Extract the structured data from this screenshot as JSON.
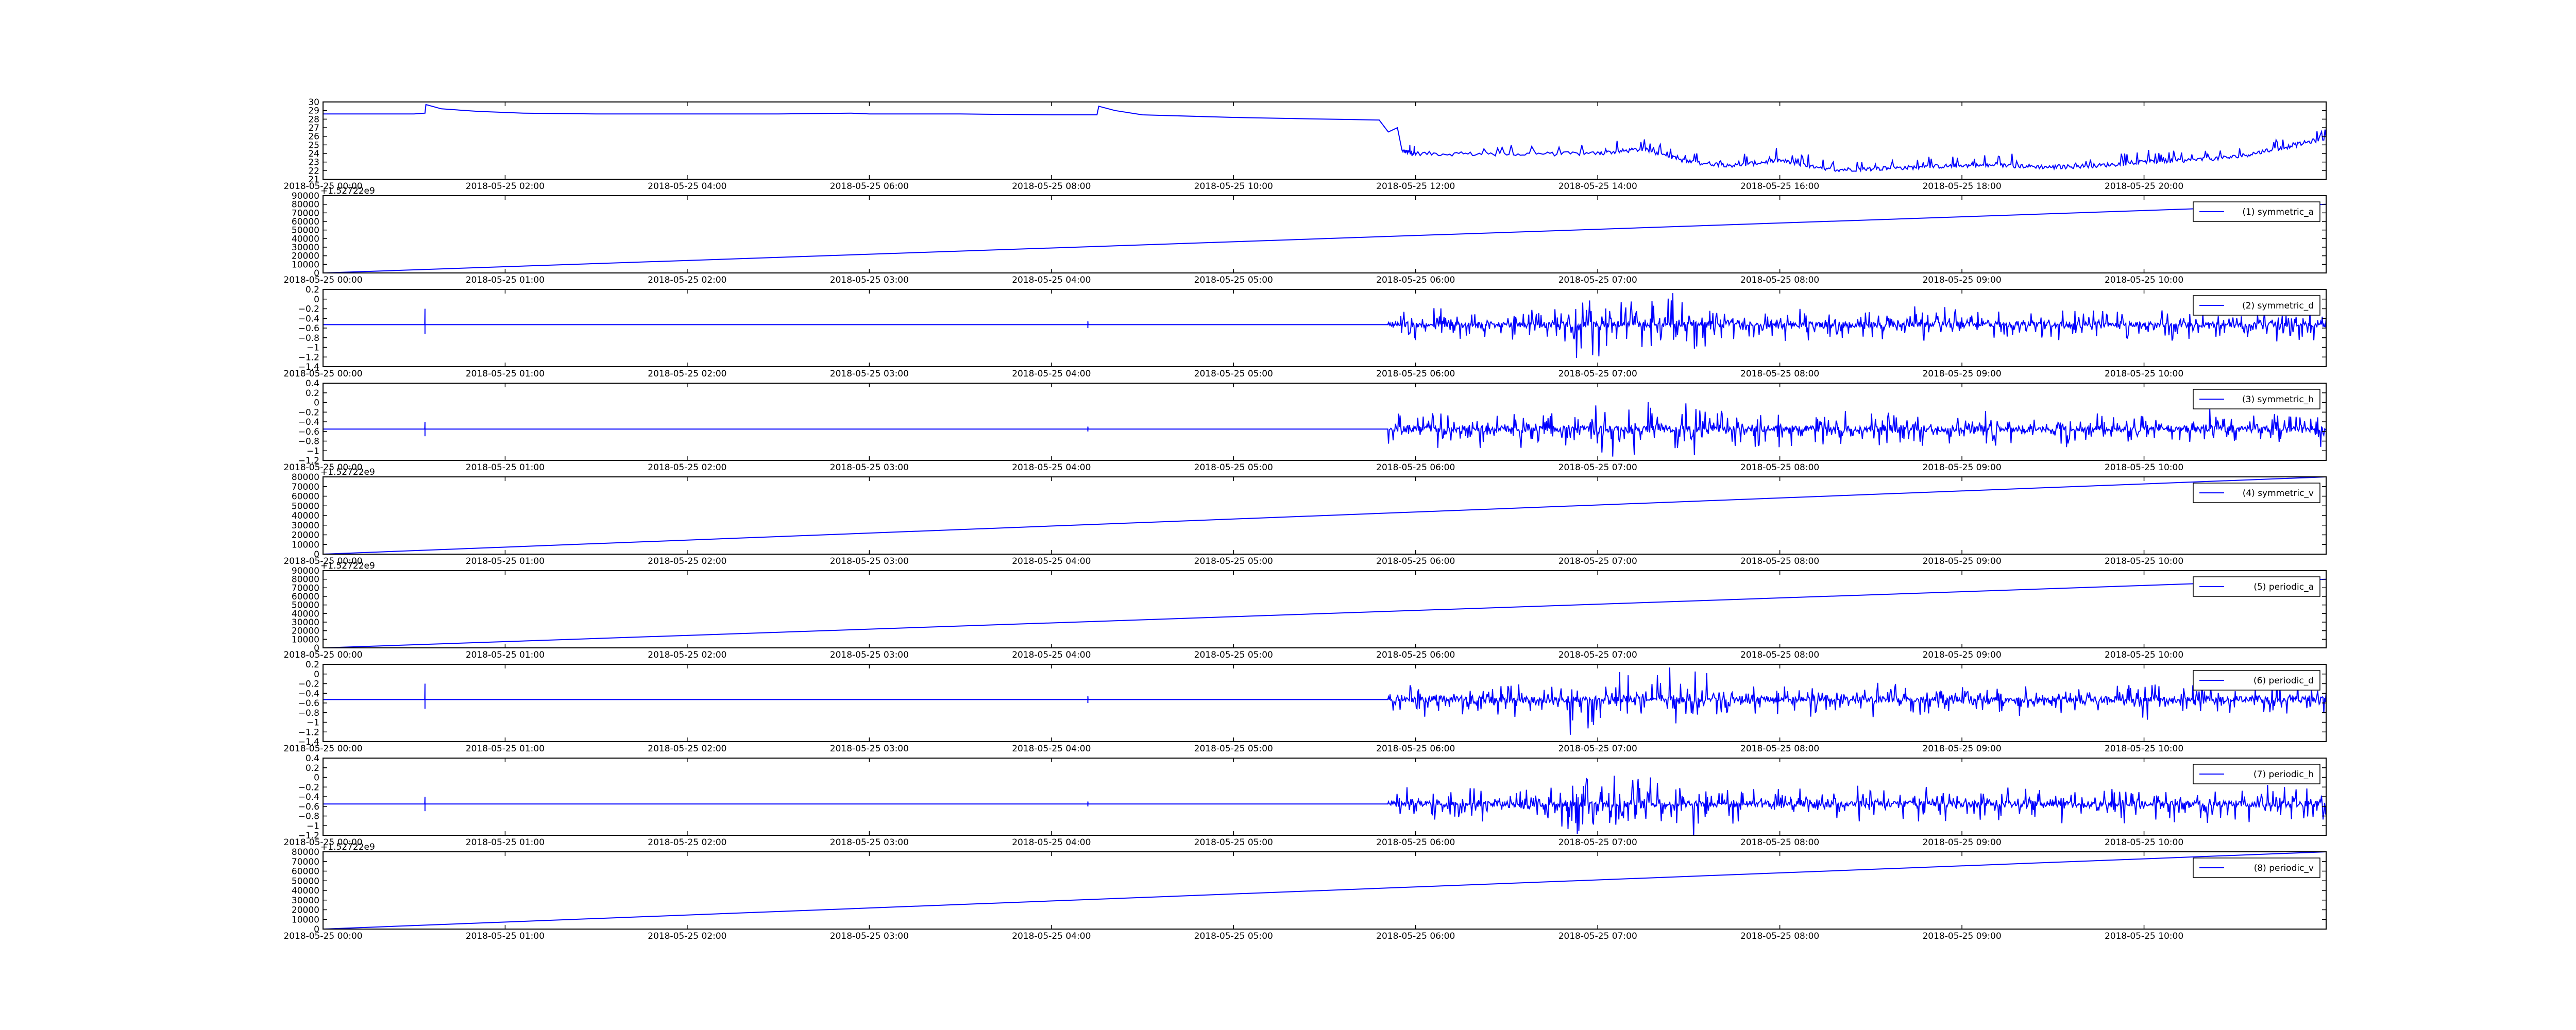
{
  "page": {
    "background": "#ffffff"
  },
  "style": {
    "line_color": "#0000ff",
    "frame_color": "#000000"
  },
  "chart_data": [
    {
      "id": "temp",
      "type": "line",
      "grid": false,
      "legend": null,
      "ylim": [
        21,
        30
      ],
      "yticks": [
        21,
        22,
        23,
        24,
        25,
        26,
        27,
        28,
        29,
        30
      ],
      "xlim": [
        0,
        22
      ],
      "xticks": [
        {
          "v": 0,
          "label": "2018-05-25 00:00"
        },
        {
          "v": 2,
          "label": "2018-05-25 02:00"
        },
        {
          "v": 4,
          "label": "2018-05-25 04:00"
        },
        {
          "v": 6,
          "label": "2018-05-25 06:00"
        },
        {
          "v": 8,
          "label": "2018-05-25 08:00"
        },
        {
          "v": 10,
          "label": "2018-05-25 10:00"
        },
        {
          "v": 12,
          "label": "2018-05-25 12:00"
        },
        {
          "v": 14,
          "label": "2018-05-25 14:00"
        },
        {
          "v": 16,
          "label": "2018-05-25 16:00"
        },
        {
          "v": 18,
          "label": "2018-05-25 18:00"
        },
        {
          "v": 20,
          "label": "2018-05-25 20:00"
        }
      ],
      "series": [
        {
          "x": [
            0,
            1.0,
            1.12,
            1.13,
            1.3,
            1.7,
            2.2,
            3,
            4,
            5,
            5.8,
            6,
            7,
            8,
            8.5,
            8.52,
            8.7,
            9,
            10,
            11,
            11.6,
            11.7,
            11.8,
            11.85,
            12,
            13,
            14,
            14.5,
            15,
            15.5,
            16,
            16.5,
            17,
            17.5,
            18,
            18.5,
            19,
            19.5,
            20,
            20.5,
            21,
            21.5,
            22
          ],
          "y": [
            28.6,
            28.6,
            28.7,
            29.7,
            29.2,
            28.9,
            28.7,
            28.6,
            28.6,
            28.6,
            28.7,
            28.6,
            28.6,
            28.5,
            28.5,
            29.5,
            29.0,
            28.5,
            28.2,
            28.0,
            27.9,
            26.5,
            27.0,
            24.3,
            24.0,
            23.9,
            24.0,
            24.5,
            23.0,
            22.6,
            23.2,
            22.1,
            22.2,
            22.4,
            22.6,
            22.6,
            22.4,
            22.6,
            23.0,
            23.2,
            23.6,
            24.6,
            25.8
          ]
        }
      ]
    },
    {
      "id": "p1",
      "type": "line",
      "grid": false,
      "legend": "upper right",
      "offset_label": "+1.52722e9",
      "ylim": [
        0,
        90000
      ],
      "yticks": [
        0,
        10000,
        20000,
        30000,
        40000,
        50000,
        60000,
        70000,
        80000,
        90000
      ],
      "xlim": [
        0,
        11
      ],
      "xticks": [
        {
          "v": 0,
          "label": "2018-05-25 00:00"
        },
        {
          "v": 1,
          "label": "2018-05-25 01:00"
        },
        {
          "v": 2,
          "label": "2018-05-25 02:00"
        },
        {
          "v": 3,
          "label": "2018-05-25 03:00"
        },
        {
          "v": 4,
          "label": "2018-05-25 04:00"
        },
        {
          "v": 5,
          "label": "2018-05-25 05:00"
        },
        {
          "v": 6,
          "label": "2018-05-25 06:00"
        },
        {
          "v": 7,
          "label": "2018-05-25 07:00"
        },
        {
          "v": 8,
          "label": "2018-05-25 08:00"
        },
        {
          "v": 9,
          "label": "2018-05-25 09:00"
        },
        {
          "v": 10,
          "label": "2018-05-25 10:00"
        }
      ],
      "series": [
        {
          "name": "(1) symmetric_a",
          "x": [
            0,
            11
          ],
          "y": [
            0,
            80000
          ]
        }
      ]
    },
    {
      "id": "p2",
      "type": "line",
      "grid": false,
      "legend": "upper right",
      "ylim": [
        -1.4,
        0.2
      ],
      "yticks": [
        -1.4,
        -1.2,
        -1.0,
        -0.8,
        -0.6,
        -0.4,
        -0.2,
        0.0,
        0.2
      ],
      "xlim": [
        0,
        11
      ],
      "xticks_ref": "p1",
      "noise": {
        "baseline": -0.53,
        "bursts": [
          [
            0.56,
            -0.2,
            -0.72
          ],
          [
            4.2,
            -0.46,
            -0.6
          ]
        ],
        "active_from": 5.85
      },
      "series": [
        {
          "name": "(2) symmetric_d"
        }
      ]
    },
    {
      "id": "p3",
      "type": "line",
      "grid": false,
      "legend": "upper right",
      "ylim": [
        -1.2,
        0.4
      ],
      "yticks": [
        -1.2,
        -1.0,
        -0.8,
        -0.6,
        -0.4,
        -0.2,
        0.0,
        0.2,
        0.4
      ],
      "xlim": [
        0,
        11
      ],
      "xticks_ref": "p1",
      "noise": {
        "baseline": -0.55,
        "bursts": [
          [
            0.56,
            -0.4,
            -0.7
          ],
          [
            4.2,
            -0.5,
            -0.6
          ]
        ],
        "active_from": 5.85
      },
      "series": [
        {
          "name": "(3) symmetric_h"
        }
      ]
    },
    {
      "id": "p4",
      "type": "line",
      "grid": false,
      "legend": "upper right",
      "offset_label": "+1.52722e9",
      "ylim": [
        0,
        80000
      ],
      "yticks": [
        0,
        10000,
        20000,
        30000,
        40000,
        50000,
        60000,
        70000,
        80000
      ],
      "xlim": [
        0,
        11
      ],
      "xticks_ref": "p1",
      "series": [
        {
          "name": "(4) symmetric_v",
          "x": [
            0,
            11
          ],
          "y": [
            0,
            80000
          ]
        }
      ]
    },
    {
      "id": "p5",
      "type": "line",
      "grid": false,
      "legend": "upper right",
      "offset_label": "+1.52722e9",
      "ylim": [
        0,
        90000
      ],
      "yticks": [
        0,
        10000,
        20000,
        30000,
        40000,
        50000,
        60000,
        70000,
        80000,
        90000
      ],
      "xlim": [
        0,
        11
      ],
      "xticks_ref": "p1",
      "series": [
        {
          "name": "(5) periodic_a",
          "x": [
            0,
            11
          ],
          "y": [
            0,
            80000
          ]
        }
      ]
    },
    {
      "id": "p6",
      "type": "line",
      "grid": false,
      "legend": "upper right",
      "ylim": [
        -1.4,
        0.2
      ],
      "yticks": [
        -1.4,
        -1.2,
        -1.0,
        -0.8,
        -0.6,
        -0.4,
        -0.2,
        0.0,
        0.2
      ],
      "xlim": [
        0,
        11
      ],
      "xticks_ref": "p1",
      "noise": {
        "baseline": -0.53,
        "bursts": [
          [
            0.56,
            -0.2,
            -0.72
          ],
          [
            4.2,
            -0.46,
            -0.6
          ]
        ],
        "active_from": 5.85
      },
      "series": [
        {
          "name": "(6) periodic_d"
        }
      ]
    },
    {
      "id": "p7",
      "type": "line",
      "grid": false,
      "legend": "upper right",
      "ylim": [
        -1.2,
        0.4
      ],
      "yticks": [
        -1.2,
        -1.0,
        -0.8,
        -0.6,
        -0.4,
        -0.2,
        0.0,
        0.2,
        0.4
      ],
      "xlim": [
        0,
        11
      ],
      "xticks_ref": "p1",
      "noise": {
        "baseline": -0.55,
        "bursts": [
          [
            0.56,
            -0.4,
            -0.7
          ],
          [
            4.2,
            -0.5,
            -0.6
          ]
        ],
        "active_from": 5.85
      },
      "series": [
        {
          "name": "(7) periodic_h"
        }
      ]
    },
    {
      "id": "p8",
      "type": "line",
      "grid": false,
      "legend": "upper right",
      "offset_label": "+1.52722e9",
      "ylim": [
        0,
        80000
      ],
      "yticks": [
        0,
        10000,
        20000,
        30000,
        40000,
        50000,
        60000,
        70000,
        80000
      ],
      "xlim": [
        0,
        11
      ],
      "xticks_ref": "p1",
      "series": [
        {
          "name": "(8) periodic_v",
          "x": [
            0,
            11
          ],
          "y": [
            0,
            80000
          ]
        }
      ]
    }
  ]
}
